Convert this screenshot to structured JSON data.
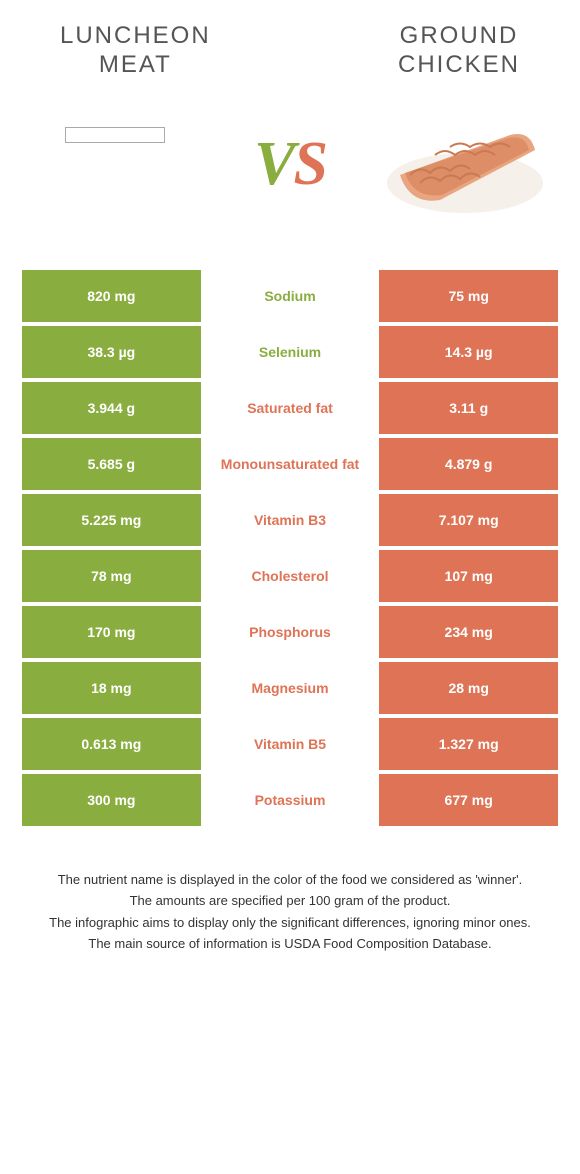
{
  "header": {
    "left_title_line1": "LUNCHEON",
    "left_title_line2": "MEAT",
    "right_title_line1": "GROUND",
    "right_title_line2": "CHICKEN"
  },
  "vs": {
    "v": "V",
    "s": "S"
  },
  "colors": {
    "left": "#8aad3f",
    "right": "#df7356",
    "text": "#555555",
    "background": "#ffffff"
  },
  "rows": [
    {
      "left": "820 mg",
      "label": "Sodium",
      "right": "75 mg",
      "winner": "left"
    },
    {
      "left": "38.3 µg",
      "label": "Selenium",
      "right": "14.3 µg",
      "winner": "left"
    },
    {
      "left": "3.944 g",
      "label": "Saturated fat",
      "right": "3.11 g",
      "winner": "right"
    },
    {
      "left": "5.685 g",
      "label": "Monounsaturated fat",
      "right": "4.879 g",
      "winner": "right"
    },
    {
      "left": "5.225 mg",
      "label": "Vitamin B3",
      "right": "7.107 mg",
      "winner": "right"
    },
    {
      "left": "78 mg",
      "label": "Cholesterol",
      "right": "107 mg",
      "winner": "right"
    },
    {
      "left": "170 mg",
      "label": "Phosphorus",
      "right": "234 mg",
      "winner": "right"
    },
    {
      "left": "18 mg",
      "label": "Magnesium",
      "right": "28 mg",
      "winner": "right"
    },
    {
      "left": "0.613 mg",
      "label": "Vitamin B5",
      "right": "1.327 mg",
      "winner": "right"
    },
    {
      "left": "300 mg",
      "label": "Potassium",
      "right": "677 mg",
      "winner": "right"
    }
  ],
  "footer": {
    "line1": "The nutrient name is displayed in the color of the food we considered as 'winner'.",
    "line2": "The amounts are specified per 100 gram of the product.",
    "line3": "The infographic aims to display only the significant differences, ignoring minor ones.",
    "line4": "The main source of information is USDA Food Composition Database."
  }
}
